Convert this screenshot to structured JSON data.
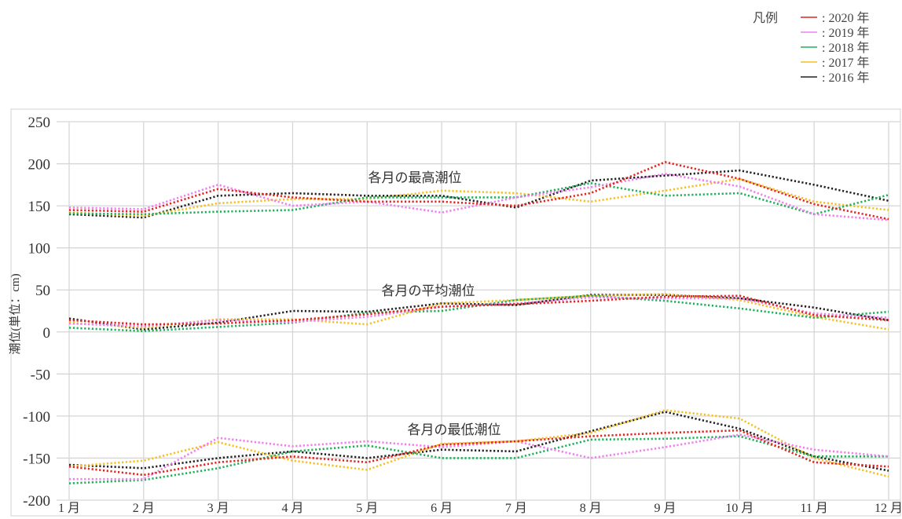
{
  "legend": {
    "title": "凡例",
    "entries": [
      {
        "label": ": 2020 年",
        "color": "#e2241f",
        "year": 2020
      },
      {
        "label": ": 2019 年",
        "color": "#f07ef0",
        "year": 2019
      },
      {
        "label": ": 2018 年",
        "color": "#1fb05a",
        "year": 2018
      },
      {
        "label": ": 2017 年",
        "color": "#f5c021",
        "year": 2017
      },
      {
        "label": ": 2016 年",
        "color": "#222222",
        "year": 2016
      }
    ]
  },
  "chart_data": {
    "type": "line",
    "title": "",
    "ylabel": "潮位(単位：cm)",
    "xlabel": "",
    "categories": [
      "1 月",
      "2 月",
      "3 月",
      "4 月",
      "5 月",
      "6 月",
      "7 月",
      "8 月",
      "9 月",
      "10 月",
      "11 月",
      "12 月"
    ],
    "ylim": [
      -200,
      250
    ],
    "yticks": [
      250,
      200,
      150,
      100,
      50,
      0,
      -50,
      -100,
      -150,
      -200
    ],
    "grid": true,
    "legend_position": "top-right",
    "annotations": [
      {
        "text": "各月の最高潮位",
        "group": "high"
      },
      {
        "text": "各月の平均潮位",
        "group": "mean"
      },
      {
        "text": "各月の最低潮位",
        "group": "low"
      }
    ],
    "groups": [
      {
        "name": "各月の最高潮位",
        "series": [
          {
            "name": "2020 年",
            "color": "#e2241f",
            "values": [
              145,
              143,
              170,
              160,
              155,
              155,
              150,
              165,
              202,
              182,
              152,
              134
            ]
          },
          {
            "name": "2019 年",
            "color": "#f07ef0",
            "values": [
              148,
              146,
              175,
              150,
              155,
              142,
              160,
              172,
              188,
              173,
              140,
              133
            ]
          },
          {
            "name": "2018 年",
            "color": "#1fb05a",
            "values": [
              141,
              140,
              143,
              145,
              160,
              160,
              160,
              177,
              162,
              165,
              140,
              163
            ]
          },
          {
            "name": "2017 年",
            "color": "#f5c021",
            "values": [
              142,
              138,
              153,
              158,
              158,
              168,
              165,
              155,
              168,
              182,
              155,
              145
            ]
          },
          {
            "name": "2016 年",
            "color": "#222222",
            "values": [
              140,
              136,
              162,
              165,
              162,
              162,
              148,
              180,
              186,
              192,
              175,
              156
            ]
          }
        ]
      },
      {
        "name": "各月の平均潮位",
        "series": [
          {
            "name": "2020 年",
            "color": "#e2241f",
            "values": [
              14,
              9,
              10,
              14,
              21,
              30,
              33,
              37,
              42,
              43,
              20,
              14
            ]
          },
          {
            "name": "2019 年",
            "color": "#f07ef0",
            "values": [
              10,
              7,
              14,
              12,
              18,
              30,
              34,
              41,
              40,
              40,
              22,
              17
            ]
          },
          {
            "name": "2018 年",
            "color": "#1fb05a",
            "values": [
              5,
              1,
              6,
              11,
              23,
              25,
              38,
              43,
              37,
              28,
              17,
              24
            ]
          },
          {
            "name": "2017 年",
            "color": "#f5c021",
            "values": [
              11,
              5,
              15,
              15,
              9,
              34,
              38,
              43,
              45,
              38,
              18,
              3
            ]
          },
          {
            "name": "2016 年",
            "color": "#222222",
            "values": [
              16,
              3,
              11,
              25,
              24,
              34,
              32,
              44,
              44,
              40,
              29,
              14
            ]
          }
        ]
      },
      {
        "name": "各月の最低潮位",
        "series": [
          {
            "name": "2020 年",
            "color": "#e2241f",
            "values": [
              -160,
              -170,
              -155,
              -148,
              -155,
              -134,
              -130,
              -124,
              -120,
              -117,
              -155,
              -160
            ]
          },
          {
            "name": "2019 年",
            "color": "#f07ef0",
            "values": [
              -175,
              -175,
              -126,
              -136,
              -130,
              -137,
              -130,
              -150,
              -137,
              -122,
              -140,
              -148
            ]
          },
          {
            "name": "2018 年",
            "color": "#1fb05a",
            "values": [
              -180,
              -176,
              -162,
              -142,
              -135,
              -150,
              -150,
              -128,
              -127,
              -124,
              -148,
              -148
            ]
          },
          {
            "name": "2017 年",
            "color": "#f5c021",
            "values": [
              -160,
              -153,
              -131,
              -153,
              -164,
              -133,
              -130,
              -120,
              -93,
              -103,
              -150,
              -172
            ]
          },
          {
            "name": "2016 年",
            "color": "#222222",
            "values": [
              -158,
              -162,
              -150,
              -142,
              -150,
              -140,
              -142,
              -118,
              -95,
              -115,
              -148,
              -165
            ]
          }
        ]
      }
    ]
  }
}
